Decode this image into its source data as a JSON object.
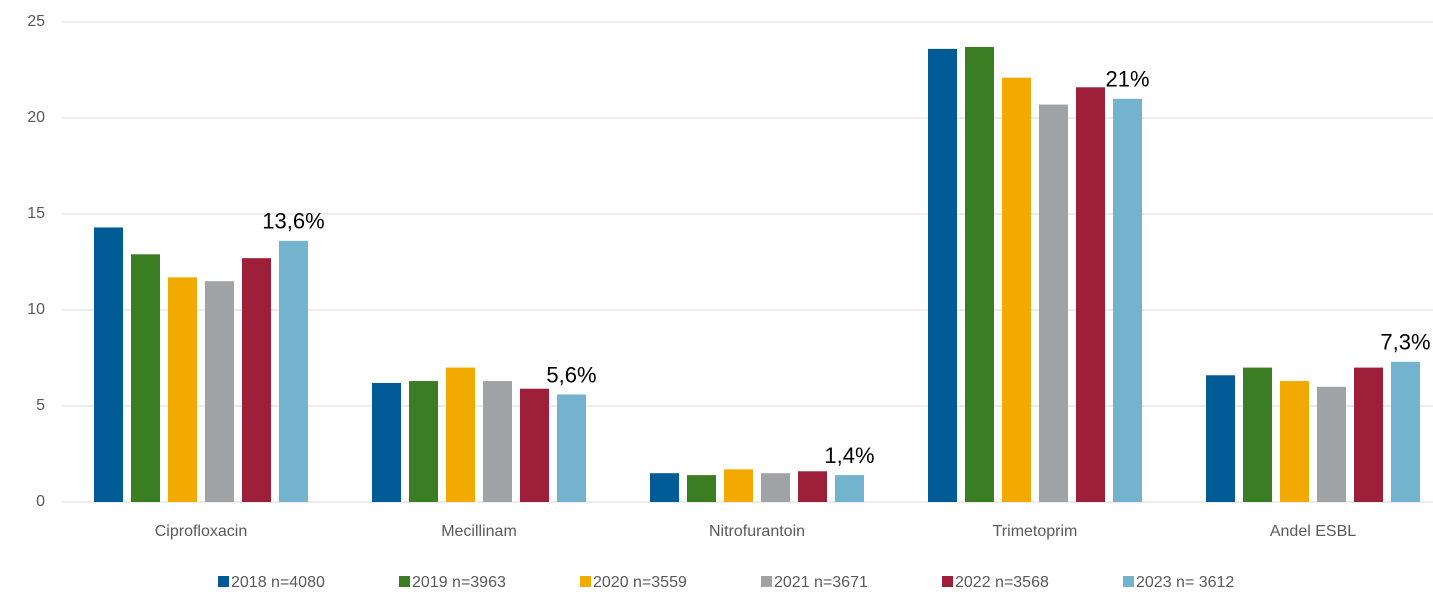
{
  "chart_data": {
    "type": "bar",
    "categories": [
      "Ciprofloxacin",
      "Mecillinam",
      "Nitrofurantoin",
      "Trimetoprim",
      "Andel ESBL"
    ],
    "series": [
      {
        "name": "2018 n=4080",
        "color": "#005b96",
        "values": [
          14.3,
          6.2,
          1.5,
          23.6,
          6.6
        ]
      },
      {
        "name": "2019 n=3963",
        "color": "#3a7d22",
        "values": [
          12.9,
          6.3,
          1.4,
          23.7,
          7.0
        ]
      },
      {
        "name": "2020 n=3559",
        "color": "#f2a900",
        "values": [
          11.7,
          7.0,
          1.7,
          22.1,
          6.3
        ]
      },
      {
        "name": "2021 n=3671",
        "color": "#a0a3a5",
        "values": [
          11.5,
          6.3,
          1.5,
          20.7,
          6.0
        ]
      },
      {
        "name": "2022 n=3568",
        "color": "#9e1f3a",
        "values": [
          12.7,
          5.9,
          1.6,
          21.6,
          7.0
        ]
      },
      {
        "name": "2023 n= 3612",
        "color": "#74b3ce",
        "values": [
          13.6,
          5.6,
          1.4,
          21,
          7.3
        ],
        "value_labels": [
          "13,6%",
          "5,6%",
          "1,4%",
          "21%",
          "7,3%"
        ]
      }
    ],
    "ylim": [
      0,
      25
    ],
    "yticks": [
      0,
      5,
      10,
      15,
      20,
      25
    ],
    "grid": true,
    "legend": "bottom"
  }
}
